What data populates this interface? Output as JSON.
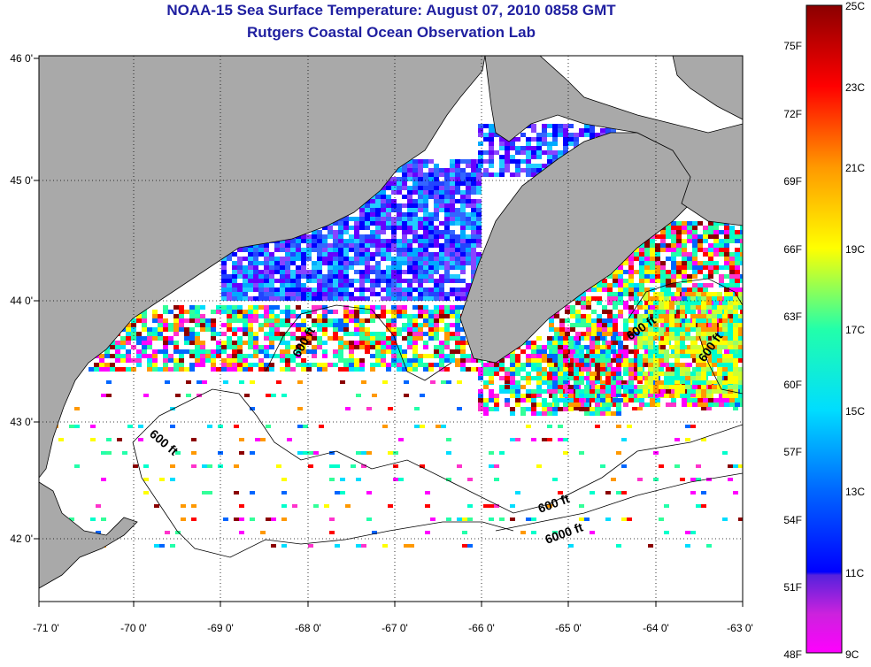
{
  "title": "NOAA-15 Sea Surface Temperature:  August 07, 2010 0858 GMT",
  "subtitle": "Rutgers Coastal Ocean Observation Lab",
  "map": {
    "lon_ticks": [
      "-71 0'",
      "-70 0'",
      "-69 0'",
      "-68 0'",
      "-67 0'",
      "-66 0'",
      "-65 0'",
      "-64 0'",
      "-63 0'"
    ],
    "lat_ticks": [
      "46 0'",
      "45 0'",
      "44 0'",
      "43 0'",
      "42 0'"
    ],
    "contour_labels": [
      "600 ft",
      "600 ft",
      "600 ft",
      "600 ft",
      "600 ft",
      "6000 ft"
    ],
    "colors": {
      "land": "#a9a9a9",
      "ocean_missing": "#ffffff",
      "coast": "#000000"
    }
  },
  "colorbar": {
    "celsius_labels": [
      "25C",
      "23C",
      "21C",
      "19C",
      "17C",
      "15C",
      "13C",
      "11C",
      "9C"
    ],
    "fahrenheit_labels": [
      "75F",
      "72F",
      "69F",
      "66F",
      "63F",
      "60F",
      "57F",
      "54F",
      "51F",
      "48F"
    ],
    "range_c": [
      9,
      25
    ]
  }
}
